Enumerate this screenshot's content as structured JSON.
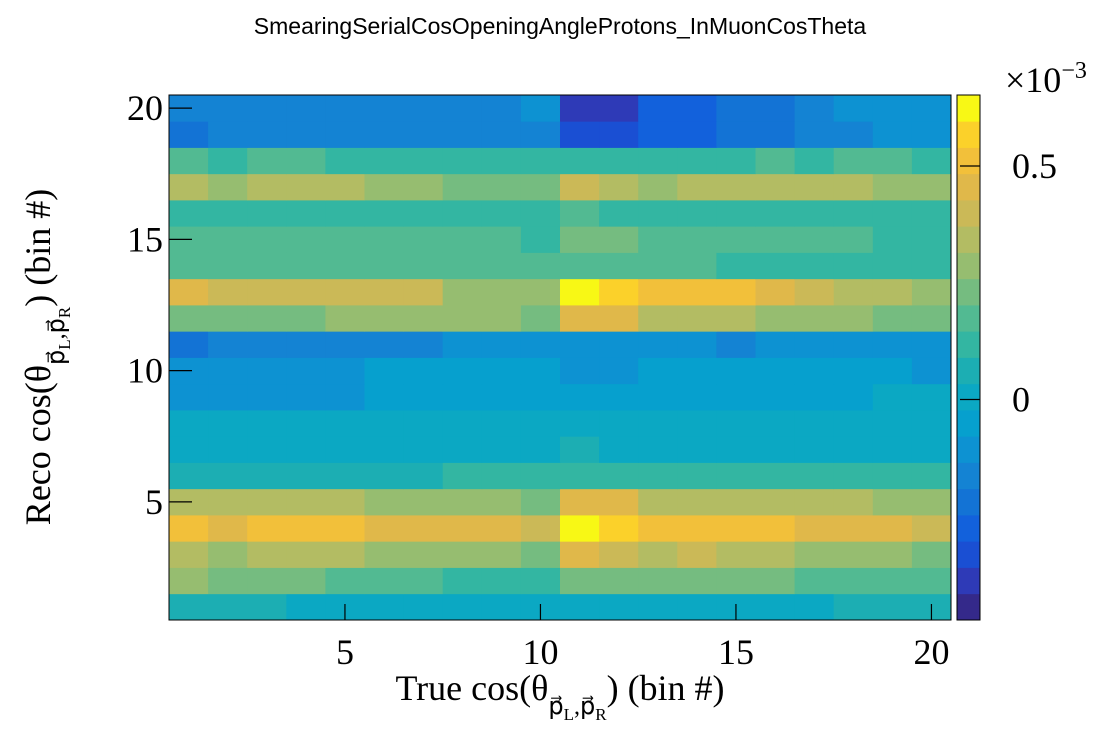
{
  "chart_data": {
    "type": "heatmap",
    "title": "SmearingSerialCosOpeningAngleProtons_InMuonCosTheta",
    "xlabel": [
      "True cos(θ",
      "p⃗",
      "L",
      ",p⃗",
      "R",
      ") (bin #)"
    ],
    "ylabel": [
      "Reco cos(θ",
      "p⃗",
      "L",
      ",p⃗",
      "R",
      ") (bin #)"
    ],
    "x": [
      1,
      2,
      3,
      4,
      5,
      6,
      7,
      8,
      9,
      10,
      11,
      12,
      13,
      14,
      15,
      16,
      17,
      18,
      19,
      20
    ],
    "y": [
      1,
      2,
      3,
      4,
      5,
      6,
      7,
      8,
      9,
      10,
      11,
      12,
      13,
      14,
      15,
      16,
      17,
      18,
      19,
      20
    ],
    "xlim": [
      0.5,
      20.5
    ],
    "ylim": [
      0.5,
      20.5
    ],
    "xticks": [
      5,
      10,
      15,
      20
    ],
    "yticks": [
      5,
      10,
      15,
      20
    ],
    "zlim": [
      -0.472,
      0.652
    ],
    "zticks": [
      0,
      0.5
    ],
    "z_multiplier": [
      "×10",
      "−3"
    ],
    "palette": [
      "#34298a",
      "#2e3ab7",
      "#1a4fd3",
      "#1261dc",
      "#1373d5",
      "#1483d3",
      "#0d92d2",
      "#06a0ce",
      "#0ba8c3",
      "#1caeb3",
      "#33b6a2",
      "#52ba92",
      "#75bc80",
      "#96bd70",
      "#b3bc63",
      "#cbb957",
      "#e0b84a",
      "#f2c03a",
      "#fbd12a",
      "#f8f815"
    ],
    "z": [
      [
        0.062,
        0.062,
        0.062,
        0.006,
        0.006,
        0.006,
        0.006,
        0.006,
        0.006,
        0.006,
        0.006,
        0.006,
        0.006,
        0.006,
        0.006,
        0.006,
        0.006,
        0.062,
        0.062,
        0.062
      ],
      [
        0.287,
        0.23,
        0.23,
        0.23,
        0.174,
        0.174,
        0.174,
        0.118,
        0.118,
        0.118,
        0.23,
        0.23,
        0.23,
        0.23,
        0.23,
        0.23,
        0.174,
        0.174,
        0.174,
        0.174
      ],
      [
        0.343,
        0.287,
        0.343,
        0.343,
        0.343,
        0.287,
        0.287,
        0.287,
        0.287,
        0.23,
        0.455,
        0.399,
        0.343,
        0.399,
        0.343,
        0.343,
        0.287,
        0.287,
        0.287,
        0.23
      ],
      [
        0.512,
        0.455,
        0.512,
        0.512,
        0.512,
        0.455,
        0.455,
        0.455,
        0.455,
        0.399,
        0.624,
        0.568,
        0.512,
        0.512,
        0.512,
        0.512,
        0.455,
        0.455,
        0.455,
        0.399
      ],
      [
        0.343,
        0.343,
        0.343,
        0.343,
        0.343,
        0.287,
        0.287,
        0.287,
        0.287,
        0.23,
        0.455,
        0.455,
        0.343,
        0.343,
        0.343,
        0.343,
        0.343,
        0.343,
        0.287,
        0.287
      ],
      [
        0.062,
        0.062,
        0.062,
        0.062,
        0.062,
        0.062,
        0.062,
        0.118,
        0.118,
        0.118,
        0.118,
        0.118,
        0.118,
        0.118,
        0.118,
        0.118,
        0.118,
        0.118,
        0.118,
        0.118
      ],
      [
        0.006,
        0.006,
        0.006,
        0.006,
        0.006,
        0.006,
        0.006,
        0.006,
        0.006,
        0.006,
        0.062,
        0.006,
        0.006,
        0.006,
        0.006,
        0.006,
        0.006,
        0.006,
        0.006,
        0.006
      ],
      [
        0.006,
        0.006,
        0.006,
        0.006,
        0.006,
        0.006,
        0.006,
        0.006,
        0.006,
        0.006,
        0.006,
        0.006,
        0.006,
        0.006,
        0.006,
        0.006,
        0.006,
        0.006,
        0.006,
        0.006
      ],
      [
        -0.107,
        -0.107,
        -0.107,
        -0.107,
        -0.107,
        -0.051,
        -0.051,
        -0.051,
        -0.051,
        -0.051,
        -0.051,
        -0.051,
        -0.051,
        -0.051,
        -0.051,
        -0.051,
        -0.051,
        -0.051,
        0.006,
        0.006
      ],
      [
        -0.107,
        -0.107,
        -0.107,
        -0.107,
        -0.107,
        -0.051,
        -0.051,
        -0.051,
        -0.051,
        -0.051,
        -0.107,
        -0.107,
        -0.051,
        -0.051,
        -0.051,
        -0.051,
        -0.051,
        -0.051,
        -0.051,
        -0.107
      ],
      [
        -0.219,
        -0.163,
        -0.163,
        -0.163,
        -0.163,
        -0.163,
        -0.163,
        -0.107,
        -0.107,
        -0.107,
        -0.107,
        -0.107,
        -0.107,
        -0.107,
        -0.163,
        -0.107,
        -0.107,
        -0.107,
        -0.107,
        -0.107
      ],
      [
        0.23,
        0.23,
        0.23,
        0.23,
        0.287,
        0.287,
        0.287,
        0.287,
        0.287,
        0.23,
        0.455,
        0.455,
        0.343,
        0.343,
        0.343,
        0.287,
        0.287,
        0.287,
        0.23,
        0.23
      ],
      [
        0.455,
        0.399,
        0.399,
        0.399,
        0.399,
        0.399,
        0.399,
        0.287,
        0.287,
        0.287,
        0.624,
        0.568,
        0.512,
        0.512,
        0.512,
        0.455,
        0.399,
        0.343,
        0.343,
        0.287
      ],
      [
        0.174,
        0.174,
        0.174,
        0.174,
        0.174,
        0.174,
        0.174,
        0.174,
        0.174,
        0.174,
        0.174,
        0.174,
        0.174,
        0.174,
        0.118,
        0.118,
        0.118,
        0.118,
        0.118,
        0.118
      ],
      [
        0.174,
        0.174,
        0.174,
        0.174,
        0.174,
        0.174,
        0.174,
        0.174,
        0.174,
        0.118,
        0.23,
        0.23,
        0.174,
        0.174,
        0.174,
        0.174,
        0.174,
        0.174,
        0.118,
        0.118
      ],
      [
        0.118,
        0.118,
        0.118,
        0.118,
        0.118,
        0.118,
        0.118,
        0.118,
        0.118,
        0.118,
        0.174,
        0.118,
        0.118,
        0.118,
        0.118,
        0.118,
        0.118,
        0.118,
        0.118,
        0.118
      ],
      [
        0.343,
        0.287,
        0.343,
        0.343,
        0.343,
        0.287,
        0.287,
        0.23,
        0.23,
        0.23,
        0.399,
        0.343,
        0.287,
        0.343,
        0.343,
        0.343,
        0.343,
        0.343,
        0.287,
        0.287
      ],
      [
        0.174,
        0.118,
        0.174,
        0.174,
        0.118,
        0.118,
        0.118,
        0.118,
        0.118,
        0.118,
        0.118,
        0.118,
        0.118,
        0.118,
        0.118,
        0.174,
        0.118,
        0.174,
        0.174,
        0.118
      ],
      [
        -0.219,
        -0.163,
        -0.163,
        -0.163,
        -0.163,
        -0.163,
        -0.163,
        -0.163,
        -0.163,
        -0.163,
        -0.332,
        -0.332,
        -0.275,
        -0.275,
        -0.219,
        -0.219,
        -0.163,
        -0.163,
        -0.107,
        -0.107
      ],
      [
        -0.163,
        -0.163,
        -0.163,
        -0.163,
        -0.163,
        -0.163,
        -0.163,
        -0.163,
        -0.163,
        -0.107,
        -0.388,
        -0.388,
        -0.275,
        -0.275,
        -0.219,
        -0.219,
        -0.163,
        -0.107,
        -0.107,
        -0.107
      ]
    ]
  }
}
